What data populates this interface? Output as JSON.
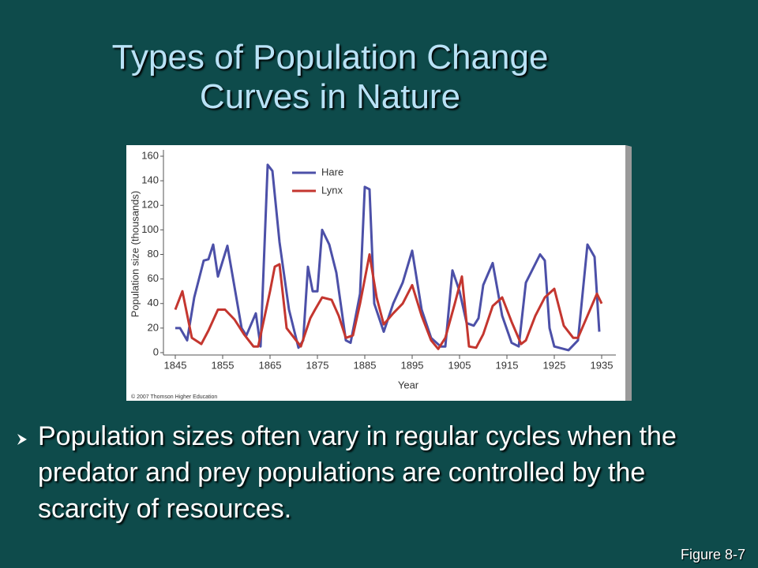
{
  "title": "Types of Population Change Curves in Nature",
  "bullet": "Population sizes often vary in regular cycles when the predator and prey populations are controlled by the scarcity of resources.",
  "figure_label": "Figure 8-7",
  "chart_data": {
    "type": "line",
    "x_label": "Year",
    "y_label": "Population size (thousands)",
    "credit": "© 2007 Thomson Higher Education",
    "xlim": [
      1842.5,
      1938
    ],
    "xticks": [
      1845,
      1855,
      1865,
      1875,
      1885,
      1895,
      1905,
      1915,
      1925,
      1935
    ],
    "ylim": [
      0,
      160
    ],
    "yticks": [
      0,
      20,
      40,
      60,
      80,
      100,
      120,
      140,
      160
    ],
    "series": [
      {
        "name": "Hare",
        "color": "#4c50a8",
        "x": [
          1845,
          1846,
          1847.5,
          1849,
          1851,
          1852,
          1853,
          1854,
          1856,
          1859,
          1860,
          1862,
          1863,
          1864.5,
          1865.5,
          1867,
          1869,
          1871,
          1872,
          1873,
          1874,
          1875,
          1876,
          1877.5,
          1879,
          1881,
          1882,
          1884,
          1885,
          1886,
          1887,
          1889,
          1891,
          1893,
          1895,
          1897,
          1899,
          1901,
          1902,
          1903.5,
          1905,
          1906.5,
          1908,
          1909,
          1910,
          1912,
          1914,
          1916,
          1917.5,
          1919,
          1922,
          1923,
          1924,
          1925,
          1928,
          1930,
          1932,
          1933.5,
          1934.5
        ],
        "values": [
          20,
          20,
          10,
          45,
          75,
          76,
          88,
          62,
          87,
          20,
          14,
          32,
          5,
          153,
          148,
          90,
          35,
          4,
          10,
          70,
          50,
          50,
          100,
          88,
          65,
          10,
          8,
          48,
          135,
          133,
          40,
          17,
          40,
          57,
          83,
          35,
          12,
          5,
          5,
          67,
          50,
          24,
          22,
          28,
          55,
          73,
          30,
          8,
          5,
          57,
          80,
          75,
          20,
          5,
          2,
          10,
          88,
          78,
          17
        ]
      },
      {
        "name": "Lynx",
        "color": "#c4362f",
        "x": [
          1845,
          1846.5,
          1848.5,
          1850.5,
          1852,
          1854,
          1855.5,
          1857.5,
          1859.5,
          1861.5,
          1862.5,
          1865,
          1866,
          1867,
          1868.5,
          1869.5,
          1871.5,
          1873.5,
          1874.5,
          1876,
          1878,
          1879.5,
          1881,
          1882.5,
          1884,
          1886,
          1887.5,
          1889,
          1891,
          1893,
          1895,
          1897,
          1899,
          1900.5,
          1902,
          1904,
          1905.5,
          1907,
          1908.5,
          1910,
          1912,
          1914,
          1916,
          1918,
          1919,
          1921,
          1923,
          1925,
          1927,
          1929,
          1930,
          1932,
          1934,
          1935
        ],
        "values": [
          35,
          50,
          12,
          7,
          18,
          35,
          35,
          27,
          15,
          5,
          5,
          50,
          70,
          72,
          20,
          15,
          5,
          28,
          35,
          45,
          43,
          30,
          12,
          14,
          40,
          80,
          45,
          23,
          32,
          40,
          55,
          30,
          10,
          3,
          12,
          40,
          62,
          5,
          4,
          15,
          38,
          45,
          25,
          7,
          10,
          30,
          45,
          52,
          22,
          12,
          12,
          30,
          48,
          40
        ]
      }
    ]
  }
}
